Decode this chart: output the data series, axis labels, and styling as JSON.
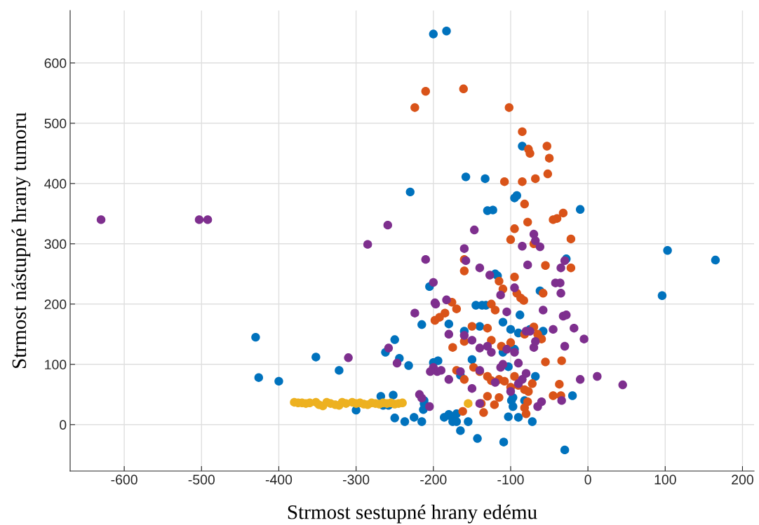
{
  "chart_data": {
    "type": "scatter",
    "xlabel": "Strmost sestupné hrany edému",
    "ylabel": "Strmost nástupné hrany tumoru",
    "xlim": [
      -670,
      215
    ],
    "ylim": [
      -77,
      687
    ],
    "xticks": [
      -600,
      -500,
      -400,
      -300,
      -200,
      -100,
      0,
      100,
      200
    ],
    "yticks": [
      0,
      100,
      200,
      300,
      400,
      500,
      600
    ],
    "grid": true,
    "legend": false,
    "marker": "circle",
    "series": [
      {
        "color": "#0072bd",
        "x": [
          -200,
          -183,
          -230,
          -158,
          -133,
          -85,
          -95,
          -92,
          -130,
          -123,
          -10,
          103,
          165,
          96,
          -28,
          -120,
          -117,
          -205,
          -145,
          -137,
          -132,
          -62,
          -215,
          -180,
          -160,
          -140,
          -110,
          -100,
          -88,
          -75,
          -58,
          -430,
          -352,
          -322,
          -426,
          -400,
          -250,
          -262,
          -244,
          -232,
          -200,
          -194,
          -165,
          -150,
          -110,
          -95,
          -90,
          -103,
          -68,
          -20,
          -300,
          -268,
          -252,
          -265,
          -258,
          -250,
          -237,
          -225,
          -215,
          -213,
          -212,
          -212,
          -186,
          -180,
          -177,
          -175,
          -170,
          -170,
          -165,
          -155,
          -143,
          -109,
          -103,
          -97,
          -90,
          -99,
          -97,
          -82,
          -72,
          -30
        ],
        "values": [
          648,
          653,
          386,
          411,
          408,
          462,
          376,
          380,
          355,
          356,
          357,
          289,
          273,
          214,
          275,
          250,
          247,
          229,
          198,
          198,
          198,
          222,
          166,
          167,
          155,
          163,
          170,
          158,
          182,
          158,
          155,
          145,
          112,
          90,
          78,
          72,
          141,
          120,
          110,
          98,
          103,
          106,
          82,
          108,
          120,
          125,
          152,
          96,
          80,
          48,
          24,
          47,
          49,
          32,
          32,
          11,
          5,
          12,
          5,
          25,
          35,
          40,
          12,
          17,
          14,
          5,
          18,
          5,
          -10,
          5,
          -23,
          -29,
          13,
          30,
          12,
          40,
          45,
          40,
          5,
          -42
        ]
      },
      {
        "color": "#d95319",
        "x": [
          -224,
          -210,
          -161,
          -102,
          -85,
          -77,
          -75,
          -53,
          -50,
          -68,
          -85,
          -108,
          -82,
          -52,
          -78,
          -40,
          -45,
          -32,
          -22,
          -100,
          -70,
          -95,
          -55,
          -22,
          -160,
          -160,
          -115,
          -110,
          -95,
          -92,
          -87,
          -83,
          -58,
          -192,
          -198,
          -176,
          -170,
          -125,
          -120,
          -160,
          -175,
          -185,
          -130,
          -150,
          -125,
          -112,
          -100,
          -82,
          -70,
          -65,
          -60,
          -55,
          -34,
          -148,
          -140,
          -130,
          -125,
          -115,
          -108,
          -95,
          -90,
          -82,
          -77,
          -72,
          -45,
          -35,
          -37,
          -170,
          -160,
          -162,
          -138,
          -135,
          -130,
          -121,
          -115,
          -100,
          -82,
          -80,
          -78
        ],
        "values": [
          526,
          553,
          557,
          526,
          486,
          457,
          450,
          462,
          442,
          408,
          403,
          403,
          366,
          416,
          336,
          342,
          340,
          351,
          308,
          307,
          300,
          325,
          264,
          260,
          274,
          255,
          238,
          225,
          245,
          218,
          210,
          206,
          218,
          178,
          173,
          203,
          192,
          200,
          190,
          138,
          128,
          185,
          160,
          163,
          140,
          130,
          136,
          150,
          162,
          150,
          142,
          104,
          106,
          95,
          88,
          80,
          73,
          75,
          72,
          80,
          65,
          58,
          55,
          68,
          48,
          48,
          67,
          90,
          75,
          22,
          35,
          20,
          47,
          33,
          45,
          62,
          28,
          18,
          38
        ]
      },
      {
        "color": "#edb120",
        "x": [
          -380,
          -375,
          -370,
          -365,
          -360,
          -352,
          -348,
          -343,
          -338,
          -333,
          -327,
          -322,
          -318,
          -313,
          -308,
          -305,
          -300,
          -295,
          -290,
          -285,
          -280,
          -275,
          -270,
          -265,
          -260,
          -255,
          -250,
          -245,
          -240,
          -155
        ],
        "values": [
          37,
          36,
          36,
          35,
          36,
          37,
          33,
          31,
          37,
          35,
          33,
          32,
          37,
          35,
          null,
          37,
          35,
          36,
          34,
          33,
          36,
          35,
          34,
          36,
          35,
          36,
          34,
          35,
          36,
          35
        ]
      },
      {
        "color": "#7e2f8e",
        "x": [
          -630,
          -503,
          -492,
          -285,
          -259,
          -310,
          -210,
          -200,
          -198,
          -197,
          -160,
          -158,
          -147,
          -140,
          -127,
          -113,
          -105,
          -95,
          -85,
          -70,
          -68,
          -62,
          -78,
          -35,
          -30,
          -42,
          -36,
          -35,
          -32,
          -28,
          -58,
          -80,
          -75,
          -70,
          -68,
          -90,
          -95,
          -110,
          -105,
          -125,
          -130,
          -140,
          -150,
          -160,
          -180,
          -183,
          -200,
          -195,
          -190,
          -204,
          -218,
          -224,
          -258,
          -247,
          -215,
          -180,
          -165,
          -150,
          -140,
          -120,
          -113,
          -100,
          -90,
          -85,
          -80,
          -65,
          -60,
          -45,
          -30,
          -34,
          -18,
          -5,
          -10,
          12,
          45,
          -205,
          -140
        ],
        "values": [
          340,
          340,
          340,
          299,
          331,
          111,
          274,
          236,
          202,
          200,
          292,
          272,
          323,
          260,
          248,
          215,
          187,
          227,
          296,
          316,
          305,
          295,
          265,
          260,
          272,
          235,
          235,
          218,
          180,
          182,
          190,
          155,
          155,
          128,
          138,
          102,
          120,
          100,
          125,
          120,
          130,
          127,
          140,
          148,
          150,
          207,
          95,
          88,
          90,
          88,
          50,
          185,
          127,
          102,
          44,
          75,
          88,
          60,
          35,
          70,
          95,
          55,
          68,
          75,
          85,
          30,
          38,
          158,
          130,
          40,
          160,
          142,
          75,
          80,
          66,
          30,
          90
        ]
      }
    ]
  }
}
